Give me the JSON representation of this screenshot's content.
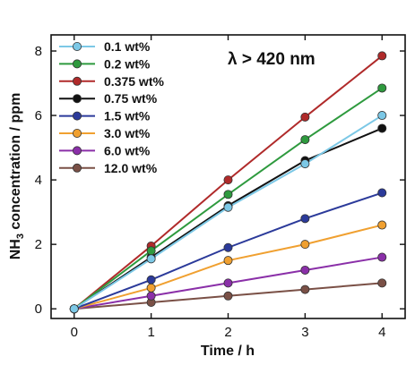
{
  "chart_data": {
    "type": "line",
    "xlabel": "Time / h",
    "ylabel_prefix": "NH",
    "ylabel_sub": "3",
    "ylabel_suffix": " concentration / ppm",
    "annotation": "λ > 420 nm",
    "xlim": [
      -0.3,
      4.3
    ],
    "ylim": [
      -0.3,
      8.5
    ],
    "x_ticks": [
      0,
      1,
      2,
      3,
      4
    ],
    "y_ticks": [
      0,
      2,
      4,
      6,
      8
    ],
    "legend_placement": "top-left",
    "x": [
      0,
      1,
      2,
      3,
      4
    ],
    "series": [
      {
        "name": "0.1 wt%",
        "color": "#7cc8e6",
        "values": [
          0,
          1.55,
          3.15,
          4.5,
          6.0
        ]
      },
      {
        "name": "0.2 wt%",
        "color": "#2e9a3e",
        "values": [
          0,
          1.8,
          3.55,
          5.25,
          6.85
        ]
      },
      {
        "name": "0.375 wt%",
        "color": "#b02a2a",
        "values": [
          0,
          1.95,
          4.0,
          5.95,
          7.85
        ]
      },
      {
        "name": "0.75 wt%",
        "color": "#111111",
        "values": [
          0,
          1.6,
          3.2,
          4.6,
          5.6
        ]
      },
      {
        "name": "1.5 wt%",
        "color": "#2b3a9a",
        "values": [
          0,
          0.9,
          1.9,
          2.8,
          3.6
        ]
      },
      {
        "name": "3.0 wt%",
        "color": "#f0a030",
        "values": [
          0,
          0.65,
          1.5,
          2.0,
          2.6
        ]
      },
      {
        "name": "6.0 wt%",
        "color": "#8a2fa8",
        "values": [
          0,
          0.4,
          0.8,
          1.2,
          1.6
        ]
      },
      {
        "name": "12.0 wt%",
        "color": "#7a5046",
        "values": [
          0,
          0.2,
          0.4,
          0.6,
          0.8
        ]
      }
    ]
  }
}
